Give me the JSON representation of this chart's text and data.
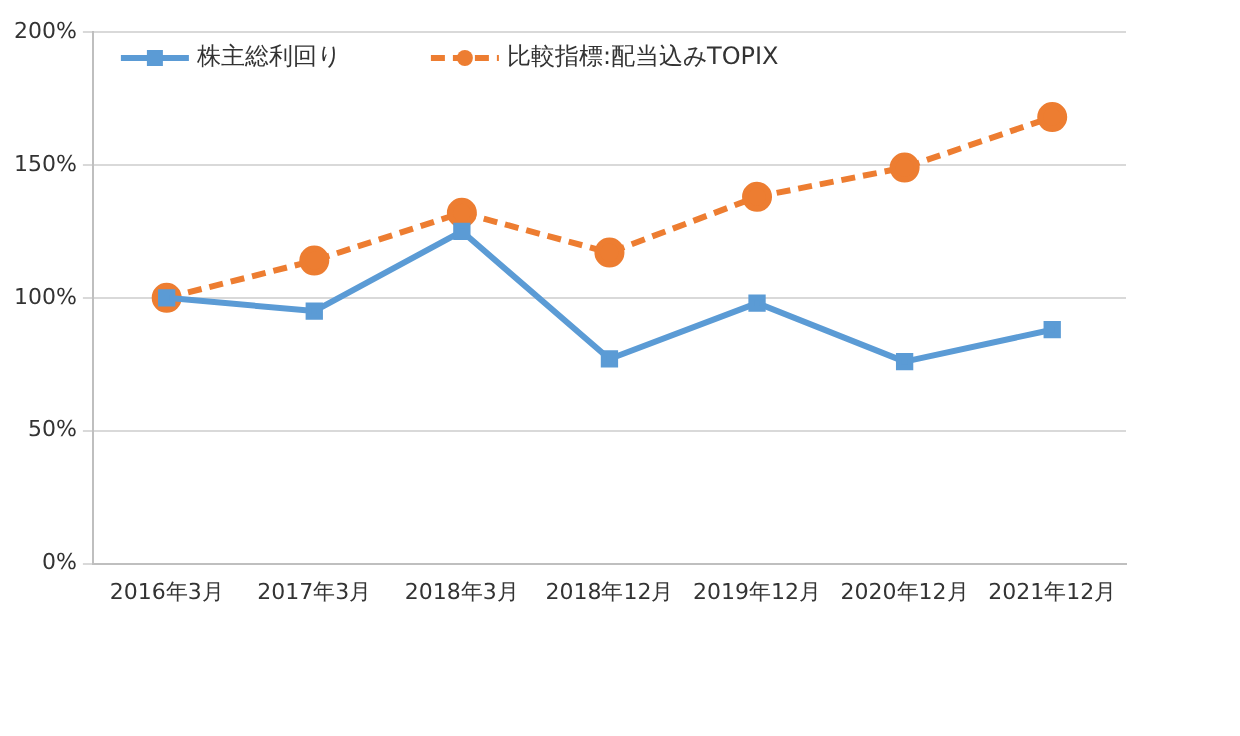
{
  "chart_data": {
    "type": "line",
    "categories": [
      "2016年3月",
      "2017年3月",
      "2018年3月",
      "2018年12月",
      "2019年12月",
      "2020年12月",
      "2021年12月"
    ],
    "series": [
      {
        "name": "株主総利回り",
        "color": "#5b9bd5",
        "marker": "square",
        "line_style": "solid",
        "values": [
          100,
          95,
          125,
          77,
          98,
          76,
          88
        ]
      },
      {
        "name": "比較指標:配当込みTOPIX",
        "color": "#ed7d31",
        "marker": "circle",
        "line_style": "dashed",
        "values": [
          100,
          114,
          132,
          117,
          138,
          149,
          168
        ]
      }
    ],
    "ylim": [
      0,
      200
    ],
    "yticks": [
      {
        "value": 0,
        "label": "0%"
      },
      {
        "value": 50,
        "label": "50%"
      },
      {
        "value": 100,
        "label": "100%"
      },
      {
        "value": 150,
        "label": "150%"
      },
      {
        "value": 200,
        "label": "200%"
      }
    ],
    "grid": "y",
    "legend": "top left"
  }
}
